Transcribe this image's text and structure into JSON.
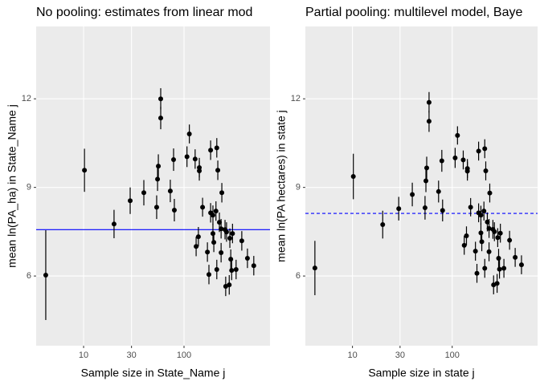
{
  "chart_data": [
    {
      "type": "scatter",
      "title": "No pooling: estimates from linear mod",
      "x_label": "Sample size in State_Name j",
      "y_label": "mean ln(PA_ha) in State_Name j",
      "x": [
        4.2,
        10.2,
        20.1,
        29.1,
        39.8,
        53.4,
        54.5,
        55.5,
        58.6,
        58.6,
        73,
        78.7,
        80.1,
        107,
        113,
        129,
        142,
        142,
        153,
        132,
        139,
        171,
        177,
        184,
        184,
        194,
        194,
        198,
        208,
        212,
        212,
        217,
        225,
        234,
        234,
        238,
        256,
        260,
        265,
        282,
        286,
        292,
        304,
        298,
        330,
        376,
        428,
        495
      ],
      "values": [
        6.03,
        9.58,
        7.76,
        8.55,
        8.82,
        8.33,
        9.28,
        9.72,
        11.35,
        12.0,
        8.88,
        9.94,
        8.23,
        10.04,
        10.81,
        9.96,
        9.67,
        9.56,
        8.33,
        7.0,
        7.33,
        6.81,
        6.05,
        10.26,
        8.14,
        8.06,
        7.44,
        7.14,
        8.2,
        10.34,
        6.22,
        9.58,
        7.82,
        7.6,
        6.79,
        8.82,
        7.57,
        5.65,
        7.49,
        5.7,
        7.28,
        6.57,
        7.44,
        6.19,
        6.22,
        7.19,
        6.6,
        6.35
      ],
      "errors": [
        1.52,
        0.73,
        0.48,
        0.45,
        0.43,
        0.4,
        0.4,
        0.4,
        0.38,
        0.36,
        0.38,
        0.38,
        0.38,
        0.35,
        0.32,
        0.33,
        0.33,
        0.33,
        0.32,
        0.33,
        0.33,
        0.33,
        0.33,
        0.33,
        0.33,
        0.33,
        0.33,
        0.33,
        0.33,
        0.33,
        0.33,
        0.33,
        0.33,
        0.33,
        0.33,
        0.33,
        0.33,
        0.33,
        0.33,
        0.33,
        0.33,
        0.33,
        0.33,
        0.33,
        0.33,
        0.33,
        0.33,
        0.33
      ],
      "color": "#000000",
      "hline": {
        "value": 7.57,
        "color": "#0000ff",
        "dashed": false
      },
      "x_log": true,
      "xlim": [
        3.37,
        718
      ],
      "xticks": [
        10,
        30,
        100
      ],
      "ylim": [
        3.64,
        14.45
      ],
      "yticks": [
        6,
        9,
        12
      ],
      "grid": true
    },
    {
      "type": "scatter",
      "title": "Partial pooling: multilevel model, Baye",
      "x_label": "Sample size in state j",
      "y_label": "mean ln(PA hectares) in state j",
      "x": [
        4.2,
        10.2,
        20.1,
        29.1,
        39.8,
        53.4,
        54.5,
        55.5,
        58.6,
        58.6,
        73,
        78.7,
        80.1,
        107,
        113,
        129,
        142,
        142,
        153,
        132,
        139,
        171,
        177,
        184,
        184,
        194,
        194,
        198,
        208,
        212,
        212,
        217,
        225,
        234,
        234,
        238,
        256,
        260,
        265,
        282,
        286,
        292,
        304,
        298,
        330,
        376,
        428,
        495
      ],
      "values": [
        6.27,
        9.37,
        7.74,
        8.28,
        8.76,
        8.31,
        9.22,
        9.66,
        11.24,
        11.88,
        8.86,
        9.9,
        8.22,
        10.0,
        10.76,
        9.93,
        9.64,
        9.55,
        8.33,
        7.04,
        7.36,
        6.84,
        6.09,
        10.23,
        8.14,
        8.06,
        7.46,
        7.16,
        8.2,
        10.31,
        6.26,
        9.56,
        7.83,
        7.61,
        6.82,
        8.81,
        7.58,
        5.7,
        7.5,
        5.75,
        7.3,
        6.6,
        7.45,
        6.23,
        6.26,
        7.21,
        6.63,
        6.38
      ],
      "errors": [
        0.92,
        0.77,
        0.47,
        0.4,
        0.4,
        0.4,
        0.38,
        0.38,
        0.36,
        0.35,
        0.37,
        0.37,
        0.37,
        0.34,
        0.31,
        0.32,
        0.32,
        0.32,
        0.31,
        0.32,
        0.32,
        0.32,
        0.32,
        0.32,
        0.32,
        0.32,
        0.32,
        0.32,
        0.32,
        0.32,
        0.32,
        0.32,
        0.32,
        0.32,
        0.32,
        0.32,
        0.32,
        0.32,
        0.32,
        0.32,
        0.32,
        0.32,
        0.32,
        0.32,
        0.32,
        0.32,
        0.32,
        0.32
      ],
      "color": "#000000",
      "hline": {
        "value": 8.12,
        "color": "#0000ff",
        "dashed": true
      },
      "x_log": true,
      "xlim": [
        3.37,
        718
      ],
      "xticks": [
        10,
        30,
        100
      ],
      "ylim": [
        3.64,
        14.45
      ],
      "yticks": [
        6,
        9,
        12
      ],
      "grid": true
    }
  ]
}
